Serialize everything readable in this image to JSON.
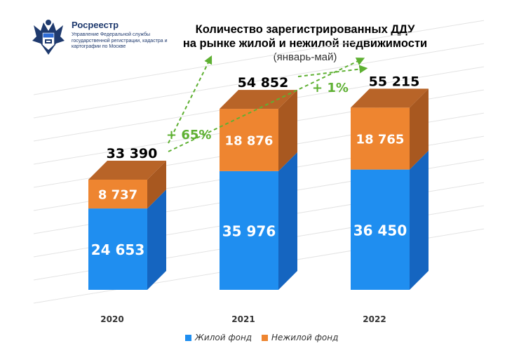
{
  "logo": {
    "name": "Росреестр",
    "subtitle": "Управление Федеральной службы государственной регистрации, кадастра и картографии по Москве"
  },
  "title": {
    "line1": "Количество зарегистрированных ДДУ",
    "line2": "на рынке жилой и нежилой недвижимости",
    "line3": "(январь-май)"
  },
  "chart_data": {
    "type": "bar",
    "stacked": true,
    "categories": [
      "2020",
      "2021",
      "2022"
    ],
    "series": [
      {
        "name": "Жилой фонд",
        "values": [
          24653,
          35976,
          36450
        ],
        "labels": [
          "24 653",
          "35 976",
          "36 450"
        ],
        "color": "#1f8ef0",
        "side_color": "#1565c0",
        "top_color": "#4aa8f5"
      },
      {
        "name": "Нежилой фонд",
        "values": [
          8737,
          18876,
          18765
        ],
        "labels": [
          "8 737",
          "18 876",
          "18 765"
        ],
        "color": "#ee8530",
        "side_color": "#a85820",
        "top_color": "#b86428"
      }
    ],
    "totals": [
      33390,
      54852,
      55215
    ],
    "total_labels": [
      "33 390",
      "54 852",
      "55 215"
    ],
    "growth": [
      {
        "label": "+ 65%",
        "color": "#5eb032"
      },
      {
        "label": "+ 1%",
        "color": "#5eb032"
      }
    ],
    "grid": true,
    "legend_position": "bottom"
  }
}
